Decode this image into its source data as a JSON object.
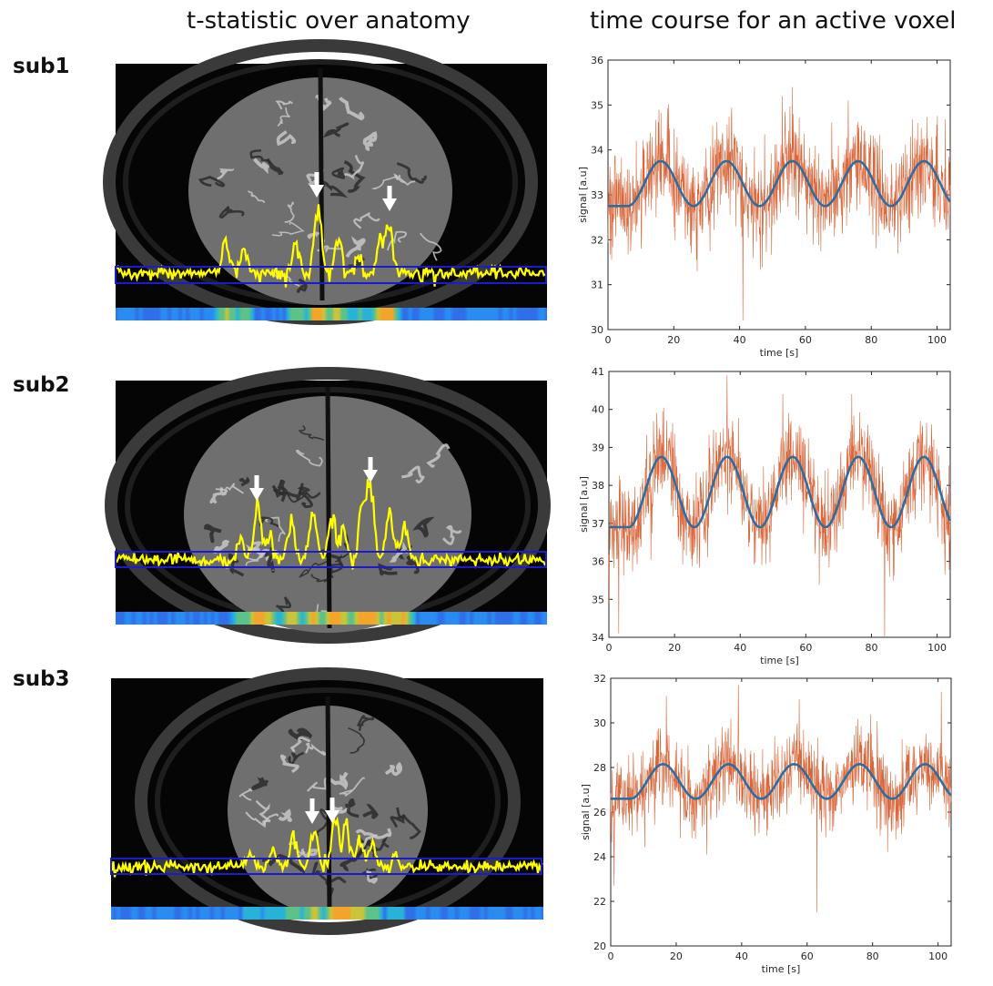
{
  "headers": {
    "left": "t-statistic over anatomy",
    "right": "time course for an active voxel"
  },
  "subjects": [
    "sub1",
    "sub2",
    "sub3"
  ],
  "colors": {
    "model": "#2E6E9E",
    "signal": "#D9673B",
    "tstat_trace": "#FFFF00",
    "roi_box": "#1A1AD0",
    "arrow": "#FFFFFF"
  },
  "chart_data": [
    {
      "type": "line",
      "subject": "sub1",
      "xlabel": "time [s]",
      "ylabel": "signal [a.u]",
      "xlim": [
        0,
        104
      ],
      "ylim": [
        30,
        36
      ],
      "xticks": [
        0,
        20,
        40,
        60,
        80,
        100
      ],
      "yticks": [
        30,
        31,
        32,
        33,
        34,
        35,
        36
      ],
      "model": {
        "baseline": 32.75,
        "amplitude": 1.0,
        "onset": 6,
        "period": 20,
        "plateau_until": 104
      },
      "noise": {
        "sd": 0.55,
        "spikes": [
          [
            34,
            34.2
          ],
          [
            56,
            35.4
          ],
          [
            41,
            30.2
          ],
          [
            53,
            35.2
          ],
          [
            73,
            35.1
          ]
        ]
      }
    },
    {
      "type": "line",
      "subject": "sub2",
      "xlabel": "time [s]",
      "ylabel": "signal [a.u]",
      "xlim": [
        0,
        104
      ],
      "ylim": [
        34,
        41
      ],
      "xticks": [
        0,
        20,
        40,
        60,
        80,
        100
      ],
      "yticks": [
        34,
        35,
        36,
        37,
        38,
        39,
        40,
        41
      ],
      "model": {
        "baseline": 36.9,
        "amplitude": 1.85,
        "onset": 6,
        "period": 20,
        "plateau_until": 104
      },
      "noise": {
        "sd": 0.6,
        "spikes": [
          [
            3,
            34.1
          ],
          [
            36,
            40.9
          ],
          [
            84,
            34.0
          ],
          [
            53,
            40.4
          ],
          [
            74,
            40.4
          ]
        ]
      }
    },
    {
      "type": "line",
      "subject": "sub3",
      "xlabel": "time [s]",
      "ylabel": "signal [a.u]",
      "xlim": [
        0,
        104
      ],
      "ylim": [
        20,
        32
      ],
      "xticks": [
        0,
        20,
        40,
        60,
        80,
        100
      ],
      "yticks": [
        20,
        22,
        24,
        26,
        28,
        30,
        32
      ],
      "model": {
        "baseline": 26.6,
        "amplitude": 1.55,
        "onset": 6,
        "period": 20,
        "plateau_until": 104
      },
      "noise": {
        "sd": 0.9,
        "spikes": [
          [
            39,
            31.7
          ],
          [
            63,
            21.5
          ],
          [
            101,
            31.4
          ],
          [
            17,
            31.2
          ],
          [
            1,
            22.7
          ]
        ]
      }
    }
  ]
}
